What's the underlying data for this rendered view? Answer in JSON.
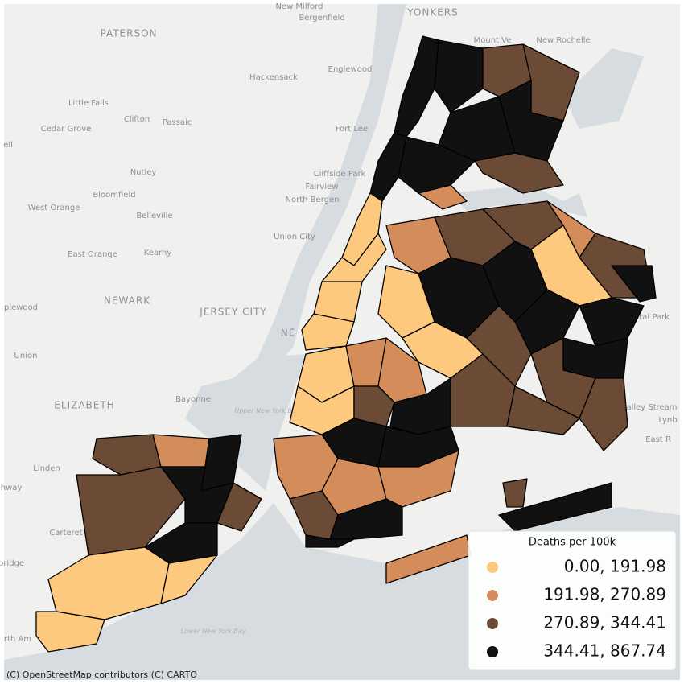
{
  "map": {
    "place_labels": [
      "New Milford",
      "Bergenfield",
      "YONKERS",
      "Mount Ve",
      "New Rochelle",
      "PATERSON",
      "Englewood",
      "Hackensack",
      "Little Falls",
      "Clifton",
      "Passaic",
      "Cedar Grove",
      "Fort Lee",
      "ell",
      "Nutley",
      "Cliffside Park",
      "Fairview",
      "Bloomfield",
      "North Bergen",
      "West Orange",
      "Belleville",
      "Union City",
      "East Orange",
      "Kearny",
      "NEWARK",
      "JERSEY CITY",
      "plewood",
      "Union",
      "ELIZABETH",
      "Bayonne",
      "Linden",
      "hway",
      "Carteret",
      "bridge",
      "rth Am",
      "oral Park",
      "alley Stream",
      "Lynb",
      "East R",
      "NE"
    ],
    "water_labels": [
      "Upper New York Bay",
      "Lower New York Bay"
    ]
  },
  "legend": {
    "title": "Deaths per 100k",
    "items": [
      {
        "label": "0.00, 191.98",
        "color": "#fdc97f"
      },
      {
        "label": "191.98, 270.89",
        "color": "#d48c5a"
      },
      {
        "label": "270.89, 344.41",
        "color": "#6b4a36"
      },
      {
        "label": "344.41, 867.74",
        "color": "#111111"
      }
    ]
  },
  "attribution": "(C) OpenStreetMap contributors (C) CARTO"
}
